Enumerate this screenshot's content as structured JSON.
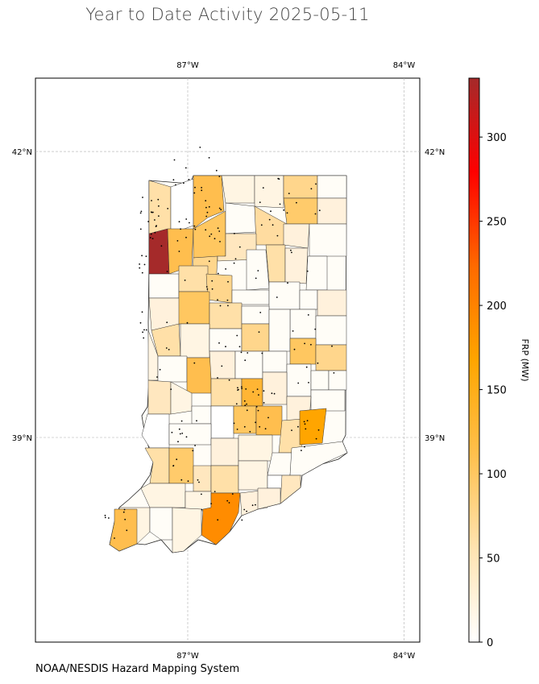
{
  "title": "Year to Date Activity 2025-05-11",
  "credit": "NOAA/NESDIS Hazard Mapping System",
  "map": {
    "lon_range": [
      -88.4,
      -83.7
    ],
    "lat_range": [
      37.3,
      43.0
    ],
    "gridlines": true,
    "lon_ticks": [
      {
        "lon": -87,
        "label": "87°W"
      },
      {
        "lon": -84,
        "label": "84°W"
      }
    ],
    "lat_ticks": [
      {
        "lat": 42,
        "label": "42°N"
      },
      {
        "lat": 39,
        "label": "39°N"
      }
    ]
  },
  "colorbar": {
    "label": "FRP (MW)",
    "range": [
      0,
      335
    ],
    "ticks": [
      0,
      50,
      100,
      150,
      200,
      250,
      300
    ],
    "colors": [
      "#ffffff",
      "#ffe3b0",
      "#ffc04d",
      "#ffa500",
      "#ff6a00",
      "#ff0000",
      "#a52a2a"
    ]
  },
  "colors": {
    "county_outline": "#333333",
    "fire_point": "#000000",
    "gridline": "#b0b0b0"
  }
}
